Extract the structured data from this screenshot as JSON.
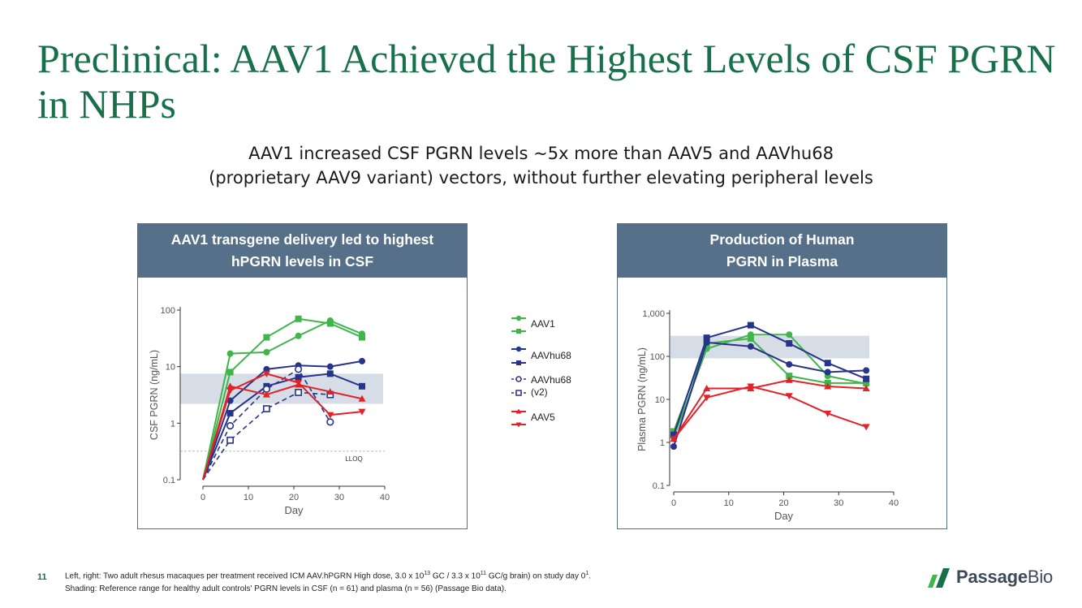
{
  "slide": {
    "title": "Preclinical: AAV1 Achieved the Highest Levels of CSF PGRN in NHPs",
    "subtitle_line1": "AAV1 increased CSF PGRN levels ~5x more than AAV5 and AAVhu68",
    "subtitle_line2": "(proprietary AAV9 variant) vectors, without further elevating peripheral levels",
    "page_number": "11",
    "footer_line1_a": "Left, right: Two adult rhesus macaques per treatment received ICM AAV.hPGRN High dose, 3.0 x 10",
    "footer_sup1": "13",
    "footer_line1_b": " GC / 3.3 x 10",
    "footer_sup2": "11",
    "footer_line1_c": " GC/g brain) on study day 0",
    "footer_sup3": "1",
    "footer_line1_d": ".",
    "footer_line2": "Shading: Reference range for healthy adult controls' PGRN levels in CSF (n = 61) and plasma (n = 56) (Passage Bio data).",
    "logo_text_a": "Passage",
    "logo_text_b": "Bio"
  },
  "colors": {
    "green": "#3fb54a",
    "blue": "#27348b",
    "red": "#e32128",
    "shade": "#d6dde6",
    "header": "#56708a",
    "title": "#17704a"
  },
  "legend": [
    {
      "label": "AAV1",
      "color": "#3fb54a",
      "markers": [
        "circle",
        "square"
      ],
      "style": "solid"
    },
    {
      "label": "AAVhu68",
      "color": "#27348b",
      "markers": [
        "circle",
        "square"
      ],
      "style": "solid"
    },
    {
      "label": "AAVhu68",
      "label2": "(v2)",
      "color": "#27348b",
      "markers": [
        "circle-open",
        "square-open"
      ],
      "style": "dashed"
    },
    {
      "label": "AAV5",
      "color": "#e32128",
      "markers": [
        "triangle-up",
        "triangle-down"
      ],
      "style": "solid"
    }
  ],
  "chart_data": [
    {
      "type": "line",
      "title_line1": "AAV1 transgene delivery led to highest",
      "title_line2": "hPGRN levels in CSF",
      "xlabel": "Day",
      "ylabel": "CSF PGRN (ng/mL)",
      "yscale": "log",
      "xlim": [
        0,
        40
      ],
      "ylim": [
        0.1,
        100
      ],
      "xticks": [
        "0",
        "10",
        "20",
        "30",
        "40"
      ],
      "yticks": [
        "0.1",
        "1",
        "10",
        "100"
      ],
      "shade_range": [
        2.2,
        7.5
      ],
      "lloq": {
        "value": 0.32,
        "label": "LLOQ"
      },
      "series": [
        {
          "name": "AAV1",
          "color": "#3fb54a",
          "marker": "circle",
          "dash": false,
          "x": [
            0,
            6,
            14,
            21,
            28,
            35
          ],
          "y": [
            0.1,
            17,
            18,
            35,
            65,
            38
          ]
        },
        {
          "name": "AAV1",
          "color": "#3fb54a",
          "marker": "square",
          "dash": false,
          "x": [
            0,
            6,
            14,
            21,
            28,
            35
          ],
          "y": [
            0.1,
            8,
            33,
            70,
            58,
            33
          ]
        },
        {
          "name": "AAVhu68",
          "color": "#27348b",
          "marker": "circle",
          "dash": false,
          "x": [
            0,
            6,
            14,
            21,
            28,
            35
          ],
          "y": [
            0.1,
            2.5,
            9,
            10.5,
            10,
            12.5
          ]
        },
        {
          "name": "AAVhu68",
          "color": "#27348b",
          "marker": "square",
          "dash": false,
          "x": [
            0,
            6,
            14,
            21,
            28,
            35
          ],
          "y": [
            0.1,
            1.5,
            4.5,
            6.5,
            7.5,
            4.5
          ]
        },
        {
          "name": "AAVhu68 (v2)",
          "color": "#27348b",
          "marker": "circle-open",
          "dash": true,
          "x": [
            0,
            6,
            14,
            21,
            28
          ],
          "y": [
            0.1,
            0.9,
            4,
            9,
            1.05
          ]
        },
        {
          "name": "AAVhu68 (v2)",
          "color": "#27348b",
          "marker": "square-open",
          "dash": true,
          "x": [
            0,
            6,
            14,
            21,
            28
          ],
          "y": [
            0.1,
            0.5,
            1.8,
            3.5,
            3.2
          ]
        },
        {
          "name": "AAV5",
          "color": "#e32128",
          "marker": "triangle-up",
          "dash": false,
          "x": [
            0,
            6,
            14,
            21,
            28,
            35
          ],
          "y": [
            0.1,
            4.5,
            3.2,
            4.8,
            3.6,
            2.7
          ]
        },
        {
          "name": "AAV5",
          "color": "#e32128",
          "marker": "triangle-down",
          "dash": false,
          "x": [
            0,
            6,
            14,
            21,
            28,
            35
          ],
          "y": [
            0.1,
            3.8,
            7.5,
            5.2,
            1.4,
            1.6
          ]
        }
      ]
    },
    {
      "type": "line",
      "title_line1": "Production of Human",
      "title_line2": "PGRN in Plasma",
      "xlabel": "Day",
      "ylabel": "Plasma PGRN (ng/mL)",
      "yscale": "log",
      "xlim": [
        0,
        40
      ],
      "ylim": [
        0.1,
        1000
      ],
      "xticks": [
        "0",
        "10",
        "20",
        "30",
        "40"
      ],
      "yticks": [
        "0.1",
        "1",
        "10",
        "100",
        "1,000"
      ],
      "shade_range": [
        90,
        300
      ],
      "series": [
        {
          "name": "AAV1",
          "color": "#3fb54a",
          "marker": "circle",
          "dash": false,
          "x": [
            0,
            6,
            14,
            21,
            28,
            35
          ],
          "y": [
            1.3,
            150,
            320,
            320,
            35,
            23
          ]
        },
        {
          "name": "AAV1",
          "color": "#3fb54a",
          "marker": "square",
          "dash": false,
          "x": [
            0,
            6,
            14,
            21,
            28,
            35
          ],
          "y": [
            1.8,
            200,
            260,
            35,
            24,
            24
          ]
        },
        {
          "name": "AAVhu68",
          "color": "#27348b",
          "marker": "circle",
          "dash": false,
          "x": [
            0,
            6,
            14,
            21,
            28,
            35
          ],
          "y": [
            0.8,
            210,
            170,
            65,
            43,
            47
          ]
        },
        {
          "name": "AAVhu68",
          "color": "#27348b",
          "marker": "square",
          "dash": false,
          "x": [
            0,
            6,
            14,
            21,
            28,
            35
          ],
          "y": [
            1.5,
            270,
            530,
            200,
            70,
            30
          ]
        },
        {
          "name": "AAV5",
          "color": "#e32128",
          "marker": "triangle-up",
          "dash": false,
          "x": [
            0,
            6,
            14,
            21,
            28,
            35
          ],
          "y": [
            1.2,
            18,
            18,
            28,
            20,
            18
          ]
        },
        {
          "name": "AAV5",
          "color": "#e32128",
          "marker": "triangle-down",
          "dash": false,
          "x": [
            0,
            6,
            14,
            21,
            28,
            35
          ],
          "y": [
            1.2,
            11,
            20,
            12,
            4.7,
            2.3
          ]
        }
      ]
    }
  ]
}
